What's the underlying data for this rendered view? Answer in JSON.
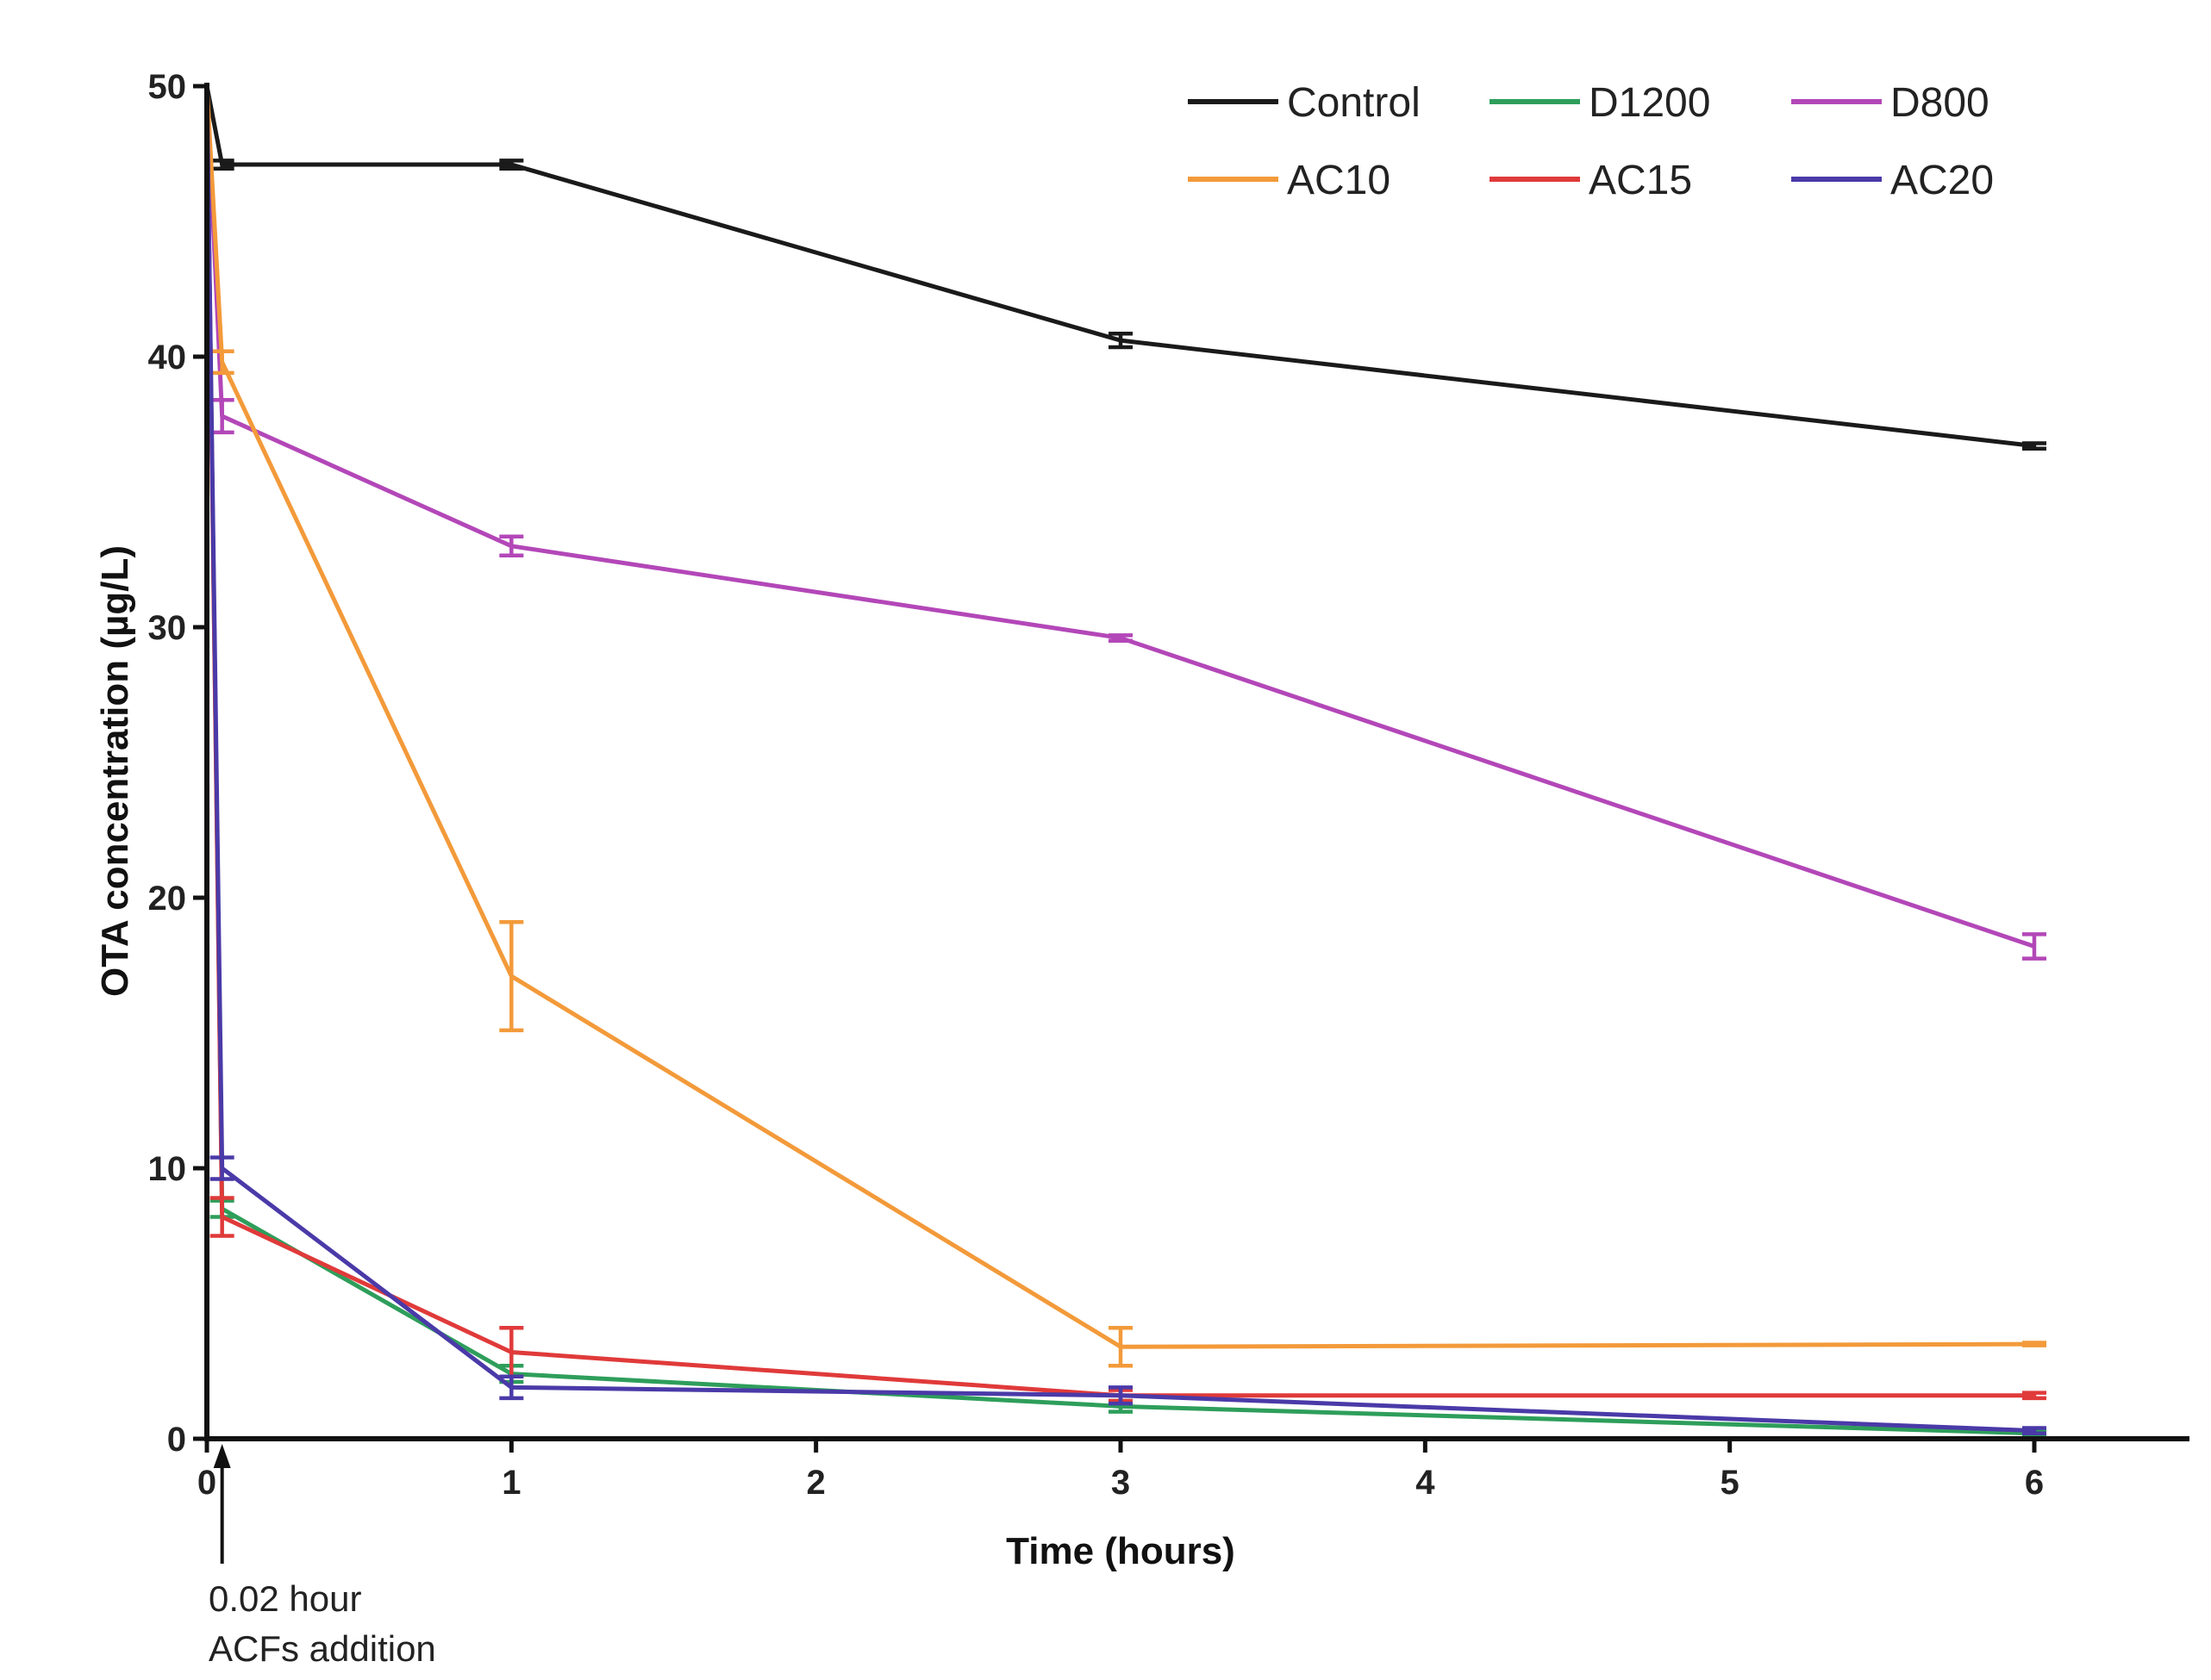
{
  "chart_data": {
    "type": "line",
    "title": "",
    "xlabel": "Time (hours)",
    "ylabel": "OTA concentration (µg/L)",
    "xlim": [
      0,
      6.5
    ],
    "ylim": [
      0,
      50
    ],
    "xticks": [
      0,
      1,
      2,
      3,
      4,
      5,
      6
    ],
    "yticks": [
      0,
      10,
      20,
      30,
      40,
      50
    ],
    "grid": false,
    "legend_position": "top-right",
    "series": [
      {
        "name": "Control",
        "color": "#1a1a1a",
        "x": [
          0,
          0.05,
          1,
          3,
          6
        ],
        "y": [
          50,
          47.1,
          47.1,
          40.6,
          36.7
        ],
        "err": [
          0,
          0.15,
          0.15,
          0.25,
          0.1
        ]
      },
      {
        "name": "D1200",
        "color": "#2e9e5b",
        "x": [
          0,
          0.05,
          1,
          3,
          6
        ],
        "y": [
          50,
          8.5,
          2.4,
          1.2,
          0.2
        ],
        "err": [
          0,
          0.3,
          0.3,
          0.2,
          0.1
        ]
      },
      {
        "name": "D800",
        "color": "#b347b8",
        "x": [
          0,
          0.05,
          1,
          3,
          6
        ],
        "y": [
          50,
          37.8,
          33.0,
          29.6,
          18.2
        ],
        "err": [
          0,
          0.6,
          0.35,
          0.1,
          0.45
        ]
      },
      {
        "name": "AC10",
        "color": "#f39a3a",
        "x": [
          0,
          0.05,
          1,
          3,
          6
        ],
        "y": [
          50,
          39.8,
          17.1,
          3.4,
          3.5
        ],
        "err": [
          0,
          0.4,
          2.0,
          0.7,
          0.05
        ]
      },
      {
        "name": "AC15",
        "color": "#e03a3a",
        "x": [
          0,
          0.05,
          1,
          3,
          6
        ],
        "y": [
          50,
          8.2,
          3.2,
          1.6,
          1.6
        ],
        "err": [
          0,
          0.7,
          0.9,
          0.2,
          0.1
        ]
      },
      {
        "name": "AC20",
        "color": "#4a3aa8",
        "x": [
          0,
          0.05,
          1,
          3,
          6
        ],
        "y": [
          50,
          10.0,
          1.9,
          1.6,
          0.3
        ],
        "err": [
          0,
          0.4,
          0.4,
          0.3,
          0.1
        ]
      }
    ],
    "annotations": [
      {
        "text_line1": "0.02 hour",
        "text_line2": "ACFs addition",
        "x": 0.05,
        "y": 0
      }
    ]
  }
}
